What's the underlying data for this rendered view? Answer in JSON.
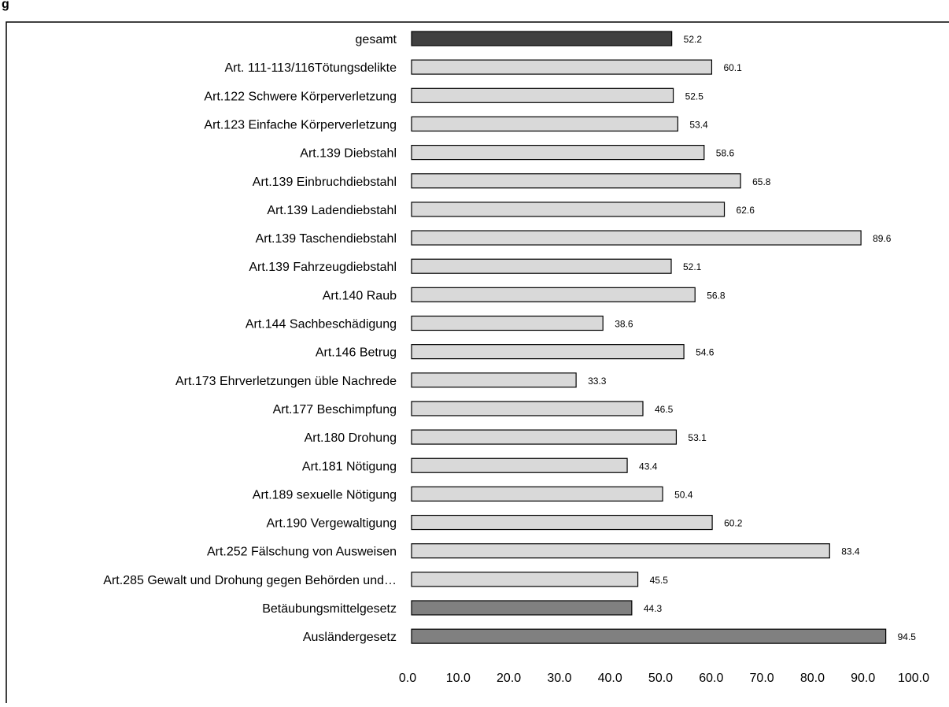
{
  "page": {
    "header_fragment": "g"
  },
  "colors": {
    "bar_default": "#d9d9d9",
    "bar_total": "#404040",
    "bar_highlight": "#808080",
    "bar_stroke": "#000000",
    "frame": "#000000"
  },
  "chart_data": {
    "type": "bar",
    "orientation": "horizontal",
    "title": "",
    "xlabel": "",
    "ylabel": "",
    "xlim": [
      0,
      100
    ],
    "grid": false,
    "legend": "none",
    "categories": [
      "gesamt",
      "Art. 111-113/116Tötungsdelikte",
      "Art.122 Schwere Körperverletzung",
      "Art.123 Einfache Körperverletzung",
      "Art.139 Diebstahl",
      "Art.139 Einbruchdiebstahl",
      "Art.139 Ladendiebstahl",
      "Art.139 Taschendiebstahl",
      "Art.139 Fahrzeugdiebstahl",
      "Art.140 Raub",
      "Art.144 Sachbeschädigung",
      "Art.146 Betrug",
      "Art.173 Ehrverletzungen üble Nachrede",
      "Art.177 Beschimpfung",
      "Art.180 Drohung",
      "Art.181 Nötigung",
      "Art.189 sexuelle Nötigung",
      "Art.190 Vergewaltigung",
      "Art.252 Fälschung von Ausweisen",
      "Art.285 Gewalt und Drohung gegen Behörden und…",
      "Betäubungsmittelgesetz",
      "Ausländergesetz"
    ],
    "values": [
      52.2,
      60.1,
      52.5,
      53.4,
      58.6,
      65.8,
      62.6,
      89.6,
      52.1,
      56.8,
      38.6,
      54.6,
      33.3,
      46.5,
      53.1,
      43.4,
      50.4,
      60.2,
      83.4,
      45.5,
      44.3,
      94.5
    ],
    "value_labels": [
      "52.2",
      "60.1",
      "52.5",
      "53.4",
      "58.6",
      "65.8",
      "62.6",
      "89.6",
      "52.1",
      "56.8",
      "38.6",
      "54.6",
      "33.3",
      "46.5",
      "53.1",
      "43.4",
      "50.4",
      "60.2",
      "83.4",
      "45.5",
      "44.3",
      "94.5"
    ],
    "bar_colors": [
      "#404040",
      "#d9d9d9",
      "#d9d9d9",
      "#d9d9d9",
      "#d9d9d9",
      "#d9d9d9",
      "#d9d9d9",
      "#d9d9d9",
      "#d9d9d9",
      "#d9d9d9",
      "#d9d9d9",
      "#d9d9d9",
      "#d9d9d9",
      "#d9d9d9",
      "#d9d9d9",
      "#d9d9d9",
      "#d9d9d9",
      "#d9d9d9",
      "#d9d9d9",
      "#d9d9d9",
      "#808080",
      "#808080"
    ],
    "xticks": [
      "0.0",
      "10.0",
      "20.0",
      "30.0",
      "40.0",
      "50.0",
      "60.0",
      "70.0",
      "80.0",
      "90.0",
      "100.0"
    ]
  }
}
